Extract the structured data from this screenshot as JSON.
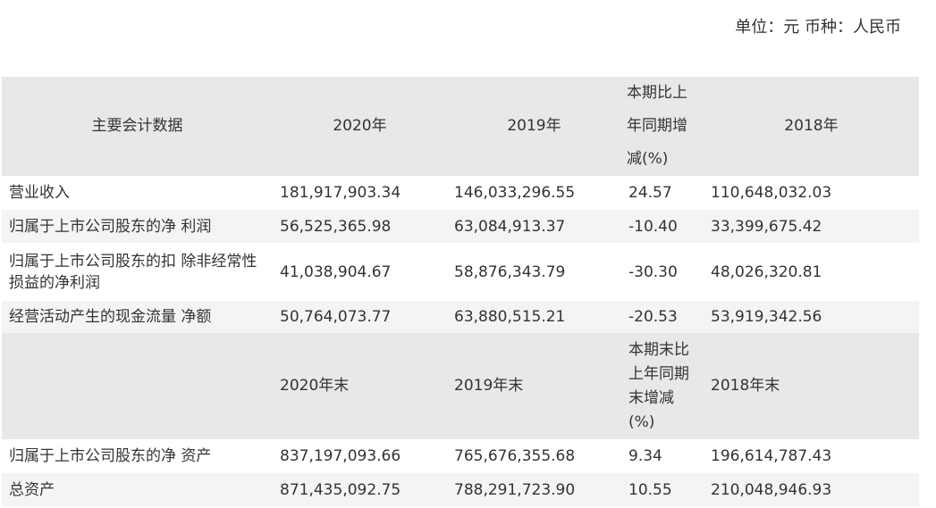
{
  "unit": "单位：元 币种：人民币",
  "table": {
    "header": [
      "主要会计数据",
      "2020年",
      "2019年",
      "本期比上年同期增减(%)",
      "2018年"
    ],
    "rows": [
      [
        "营业收入",
        "181,917,903.34",
        "146,033,296.55",
        "24.57",
        "110,648,032.03"
      ],
      [
        "归属于上市公司股东的净 利润",
        "56,525,365.98",
        "63,084,913.37",
        "-10.40",
        "33,399,675.42"
      ],
      [
        "归属于上市公司股东的扣 除非经常性损益的净利润",
        "41,038,904.67",
        "58,876,343.79",
        "-30.30",
        "48,026,320.81"
      ],
      [
        "经营活动产生的现金流量 净额",
        "50,764,073.77",
        "63,880,515.21",
        "-20.53",
        "53,919,342.56"
      ]
    ],
    "header2": [
      "2020年末",
      "2019年末",
      "本期末比上年同期末增减(%)",
      "2018年末"
    ],
    "rows2": [
      [
        "归属于上市公司股东的净 资产",
        "837,197,093.66",
        "765,676,355.68",
        "9.34",
        "196,614,787.43"
      ],
      [
        "总资产",
        "871,435,092.75",
        "788,291,723.90",
        "10.55",
        "210,048,946.93"
      ]
    ]
  }
}
